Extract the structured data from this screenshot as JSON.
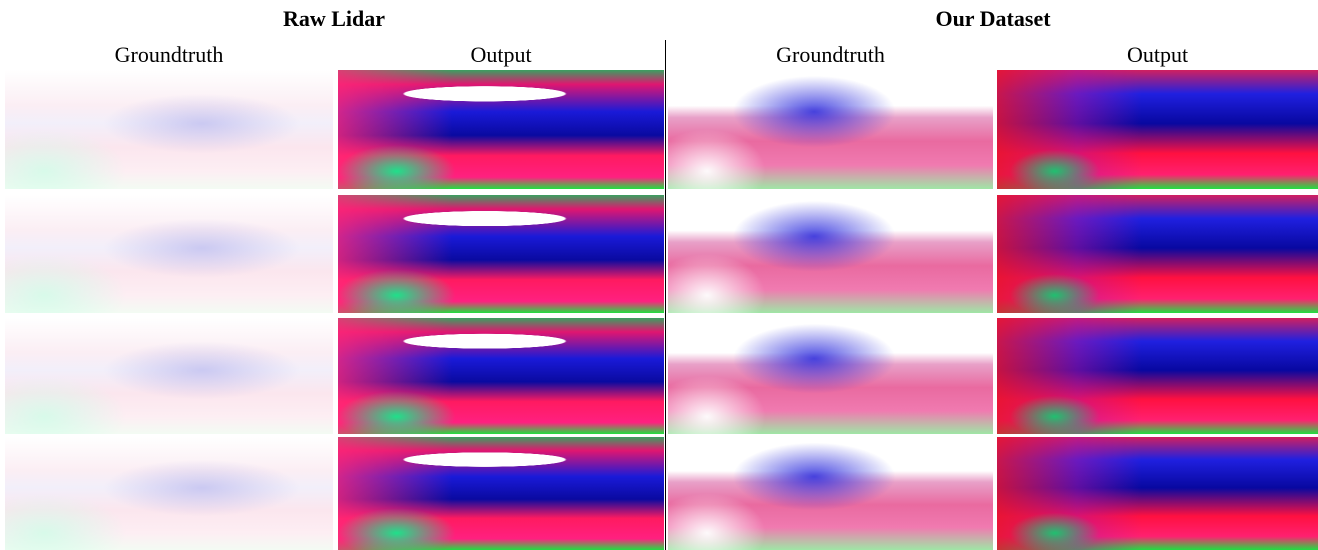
{
  "figure": {
    "groups": [
      {
        "title": "Raw Lidar",
        "columns": [
          "Groundtruth",
          "Output"
        ]
      },
      {
        "title": "Our Dataset",
        "columns": [
          "Groundtruth",
          "Output"
        ]
      }
    ]
  }
}
